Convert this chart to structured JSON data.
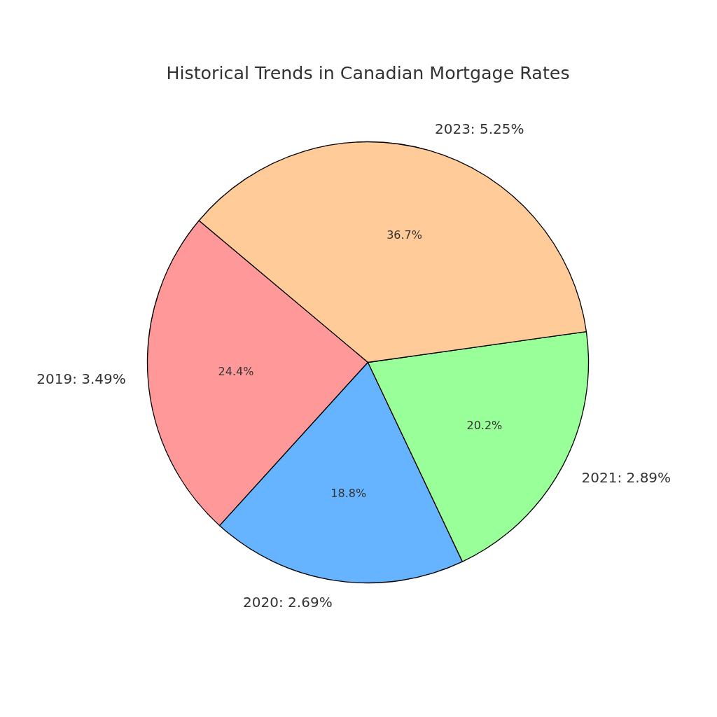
{
  "chart_data": {
    "type": "pie",
    "title": "Historical Trends in Canadian Mortgage Rates",
    "categories": [
      "2019: 3.49%",
      "2020: 2.69%",
      "2021: 2.89%",
      "2023: 5.25%"
    ],
    "values": [
      24.4,
      18.8,
      20.2,
      36.7
    ],
    "colors": [
      "#ff9999",
      "#66b3ff",
      "#99ff99",
      "#ffcc99"
    ],
    "value_labels": [
      "24.4%",
      "18.8%",
      "20.2%",
      "36.7%"
    ],
    "legend": false
  }
}
